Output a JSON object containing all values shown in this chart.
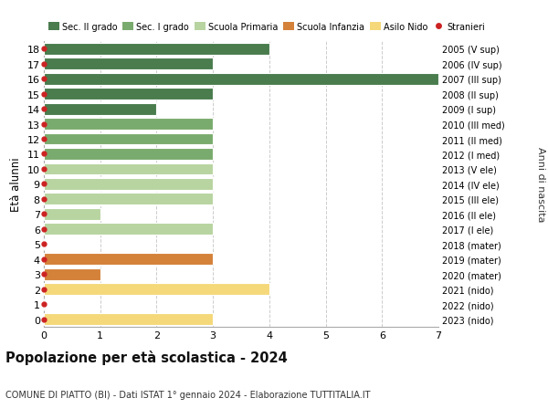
{
  "ages": [
    18,
    17,
    16,
    15,
    14,
    13,
    12,
    11,
    10,
    9,
    8,
    7,
    6,
    5,
    4,
    3,
    2,
    1,
    0
  ],
  "right_labels": [
    "2005 (V sup)",
    "2006 (IV sup)",
    "2007 (III sup)",
    "2008 (II sup)",
    "2009 (I sup)",
    "2010 (III med)",
    "2011 (II med)",
    "2012 (I med)",
    "2013 (V ele)",
    "2014 (IV ele)",
    "2015 (III ele)",
    "2016 (II ele)",
    "2017 (I ele)",
    "2018 (mater)",
    "2019 (mater)",
    "2020 (mater)",
    "2021 (nido)",
    "2022 (nido)",
    "2023 (nido)"
  ],
  "bar_values": [
    4,
    3,
    7,
    3,
    2,
    3,
    3,
    3,
    3,
    3,
    3,
    1,
    3,
    0,
    3,
    1,
    4,
    0,
    3
  ],
  "bar_colors": [
    "#4a7c4e",
    "#4a7c4e",
    "#4a7c4e",
    "#4a7c4e",
    "#4a7c4e",
    "#7aab6e",
    "#7aab6e",
    "#7aab6e",
    "#b8d4a0",
    "#b8d4a0",
    "#b8d4a0",
    "#b8d4a0",
    "#b8d4a0",
    "#d0dfc0",
    "#d4813a",
    "#d4813a",
    "#f5d87a",
    "#f5d87a",
    "#f5d87a"
  ],
  "dot_color": "#cc2222",
  "legend_labels": [
    "Sec. II grado",
    "Sec. I grado",
    "Scuola Primaria",
    "Scuola Infanzia",
    "Asilo Nido",
    "Stranieri"
  ],
  "legend_colors": [
    "#4a7c4e",
    "#7aab6e",
    "#b8d4a0",
    "#d4813a",
    "#f5d87a",
    "#cc2222"
  ],
  "ylabel": "Età alunni",
  "right_ylabel": "Anni di nascita",
  "title": "Popolazione per età scolastica - 2024",
  "subtitle": "COMUNE DI PIATTO (BI) - Dati ISTAT 1° gennaio 2024 - Elaborazione TUTTITALIA.IT",
  "xlim": [
    0,
    7
  ],
  "ylim": [
    -0.5,
    18.5
  ],
  "xticks": [
    0,
    1,
    2,
    3,
    4,
    5,
    6,
    7
  ],
  "bg_color": "#ffffff",
  "grid_color": "#cccccc",
  "bar_height": 0.78
}
